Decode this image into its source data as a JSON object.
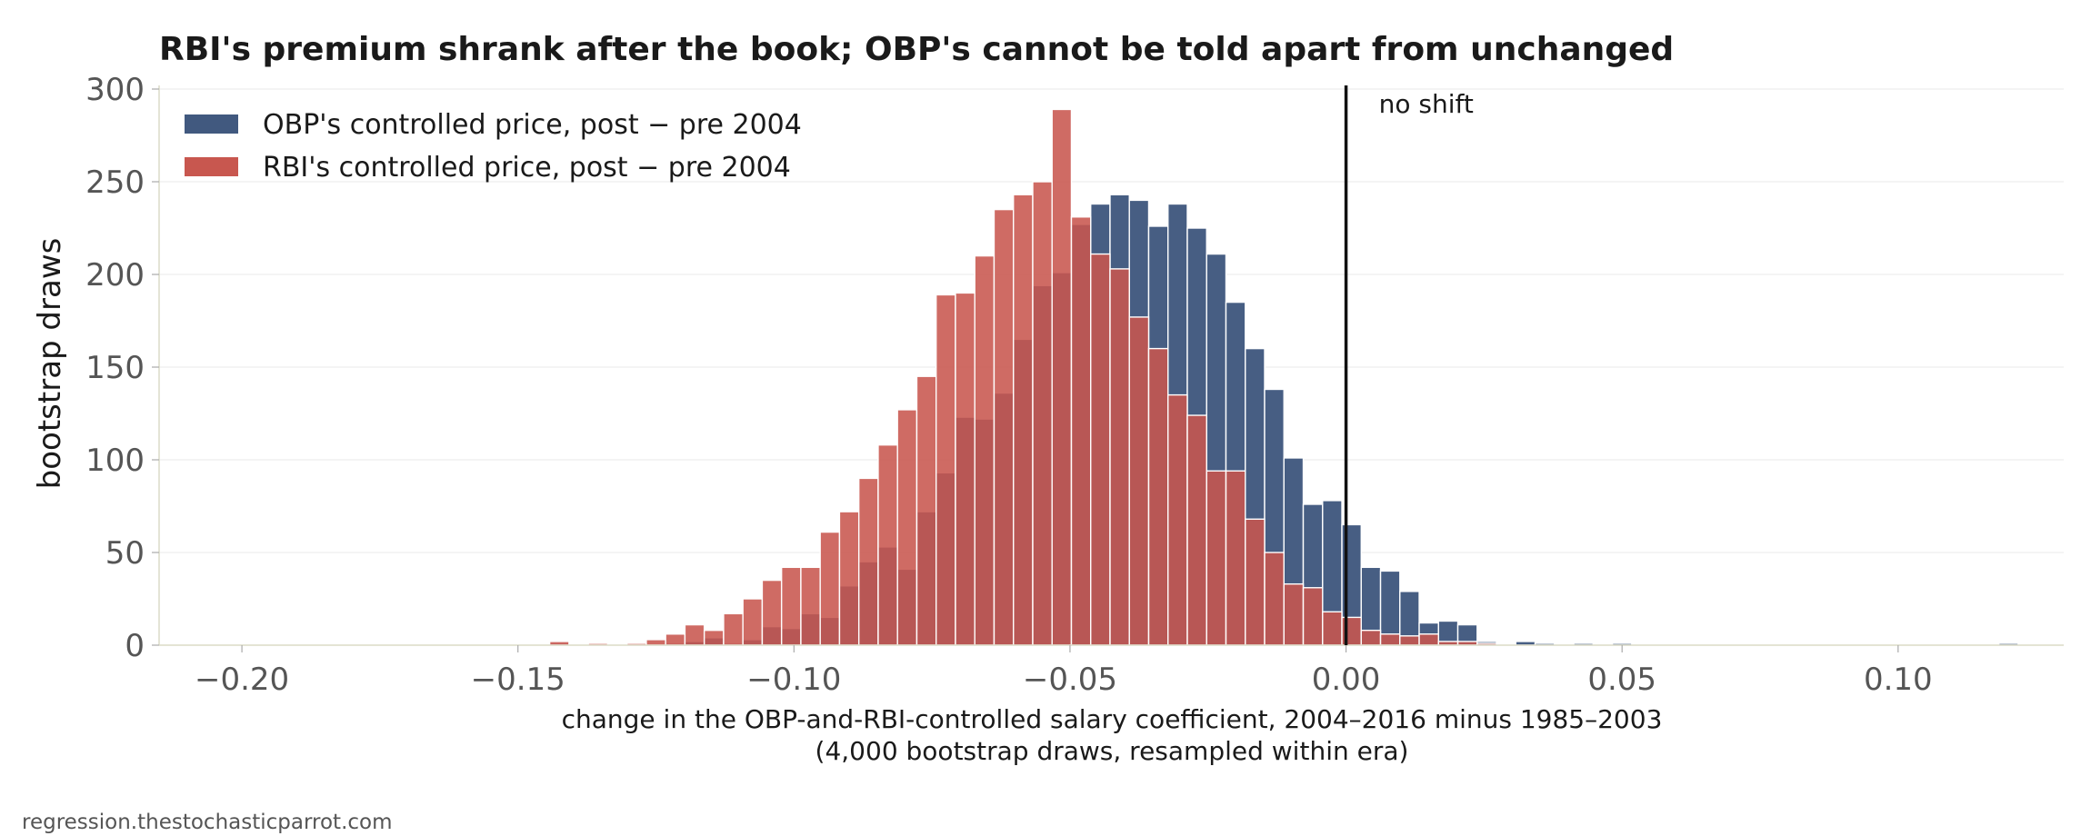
{
  "footer": "regression.thestochasticparrot.com",
  "chart_data": {
    "type": "bar",
    "title": "RBI's premium shrank after the book; OBP's cannot be told apart from unchanged",
    "xlabel": "change in the OBP-and-RBI-controlled salary coefficient, 2004–2016 minus 1985–2003",
    "xlabel_line2": "(4,000 bootstrap draws, resampled within era)",
    "ylabel": "bootstrap draws",
    "xlim": [
      -0.215,
      0.13
    ],
    "ylim": [
      0,
      300
    ],
    "xticks": [
      -0.2,
      -0.15,
      -0.1,
      -0.05,
      0.0,
      0.05,
      0.1
    ],
    "xtick_labels": [
      "−0.20",
      "−0.15",
      "−0.10",
      "−0.05",
      "0.00",
      "0.05",
      "0.10"
    ],
    "yticks": [
      0,
      50,
      100,
      150,
      200,
      250,
      300
    ],
    "ytick_labels": [
      "0",
      "50",
      "100",
      "150",
      "200",
      "250",
      "300"
    ],
    "grid": "horizontal",
    "legend_position": "top-left",
    "bin_width": 0.0035,
    "annotations": [
      {
        "x": 0.0,
        "text": "no shift"
      }
    ],
    "series": [
      {
        "name": "OBP's controlled price, post − pre 2004",
        "color": "#41597F",
        "bins": [
          [
            -0.1425,
            1
          ],
          [
            -0.1215,
            1
          ],
          [
            -0.118,
            2
          ],
          [
            -0.1145,
            4
          ],
          [
            -0.111,
            1
          ],
          [
            -0.1075,
            3
          ],
          [
            -0.104,
            10
          ],
          [
            -0.1005,
            9
          ],
          [
            -0.097,
            17
          ],
          [
            -0.0935,
            15
          ],
          [
            -0.09,
            32
          ],
          [
            -0.0865,
            45
          ],
          [
            -0.083,
            53
          ],
          [
            -0.0795,
            41
          ],
          [
            -0.076,
            72
          ],
          [
            -0.0725,
            93
          ],
          [
            -0.069,
            123
          ],
          [
            -0.0655,
            122
          ],
          [
            -0.062,
            136
          ],
          [
            -0.0585,
            165
          ],
          [
            -0.055,
            194
          ],
          [
            -0.0515,
            201
          ],
          [
            -0.048,
            227
          ],
          [
            -0.0445,
            238
          ],
          [
            -0.041,
            243
          ],
          [
            -0.0375,
            240
          ],
          [
            -0.034,
            226
          ],
          [
            -0.0305,
            238
          ],
          [
            -0.027,
            225
          ],
          [
            -0.0235,
            211
          ],
          [
            -0.02,
            185
          ],
          [
            -0.0165,
            160
          ],
          [
            -0.013,
            138
          ],
          [
            -0.0095,
            101
          ],
          [
            -0.006,
            76
          ],
          [
            -0.0025,
            78
          ],
          [
            0.001,
            65
          ],
          [
            0.0045,
            42
          ],
          [
            0.008,
            40
          ],
          [
            0.0115,
            29
          ],
          [
            0.015,
            12
          ],
          [
            0.0185,
            13
          ],
          [
            0.022,
            11
          ],
          [
            0.0255,
            2
          ],
          [
            0.0325,
            2
          ],
          [
            0.036,
            1
          ],
          [
            0.043,
            1
          ],
          [
            0.05,
            1
          ],
          [
            0.12,
            1
          ]
        ]
      },
      {
        "name": "RBI's controlled price, post − pre 2004",
        "color": "#C8574F",
        "bins": [
          [
            -0.1425,
            2
          ],
          [
            -0.1355,
            1
          ],
          [
            -0.1285,
            1
          ],
          [
            -0.125,
            3
          ],
          [
            -0.1215,
            6
          ],
          [
            -0.118,
            11
          ],
          [
            -0.1145,
            8
          ],
          [
            -0.111,
            17
          ],
          [
            -0.1075,
            25
          ],
          [
            -0.104,
            35
          ],
          [
            -0.1005,
            42
          ],
          [
            -0.097,
            42
          ],
          [
            -0.0935,
            61
          ],
          [
            -0.09,
            72
          ],
          [
            -0.0865,
            90
          ],
          [
            -0.083,
            108
          ],
          [
            -0.0795,
            127
          ],
          [
            -0.076,
            145
          ],
          [
            -0.0725,
            189
          ],
          [
            -0.069,
            190
          ],
          [
            -0.0655,
            210
          ],
          [
            -0.062,
            235
          ],
          [
            -0.0585,
            243
          ],
          [
            -0.055,
            250
          ],
          [
            -0.0515,
            289
          ],
          [
            -0.048,
            231
          ],
          [
            -0.0445,
            211
          ],
          [
            -0.041,
            203
          ],
          [
            -0.0375,
            177
          ],
          [
            -0.034,
            160
          ],
          [
            -0.0305,
            135
          ],
          [
            -0.027,
            124
          ],
          [
            -0.0235,
            94
          ],
          [
            -0.02,
            94
          ],
          [
            -0.0165,
            68
          ],
          [
            -0.013,
            50
          ],
          [
            -0.0095,
            33
          ],
          [
            -0.006,
            31
          ],
          [
            -0.0025,
            18
          ],
          [
            0.001,
            15
          ],
          [
            0.0045,
            8
          ],
          [
            0.008,
            6
          ],
          [
            0.0115,
            5
          ],
          [
            0.015,
            6
          ],
          [
            0.0185,
            2
          ],
          [
            0.022,
            2
          ],
          [
            0.0255,
            1
          ]
        ]
      }
    ]
  }
}
